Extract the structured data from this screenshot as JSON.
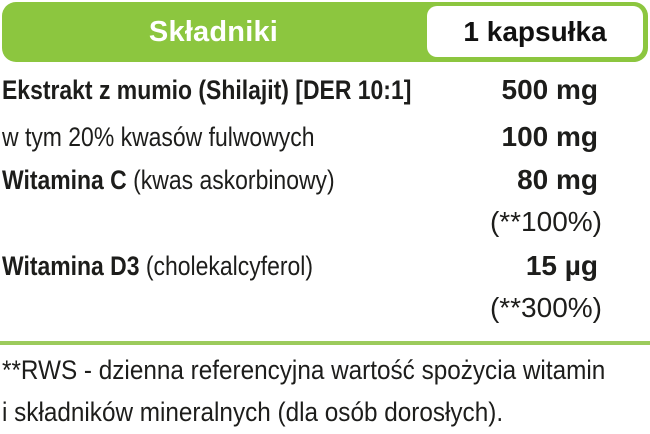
{
  "colors": {
    "brand_green": "#8cc63f",
    "divider_green": "#9ccb5c",
    "text": "#1d1d1b"
  },
  "header": {
    "title": "Składniki",
    "serving": "1 kapsułka"
  },
  "table": {
    "rows": [
      {
        "bold": "Ekstrakt z mumio (Shilajit) [DER 10:1]",
        "regular": "",
        "value": "500 mg",
        "sub": ""
      },
      {
        "bold": "",
        "regular": "w tym 20% kwasów fulwowych",
        "value": "100 mg",
        "sub": ""
      },
      {
        "bold": "Witamina C",
        "regular": " (kwas askorbinowy)",
        "value": "80 mg",
        "sub": "(**100%)"
      },
      {
        "bold": "Witamina D3",
        "regular": " (cholekalcyferol)",
        "value": "15 µg",
        "sub": "(**300%)"
      }
    ]
  },
  "footer": {
    "line1": "**RWS - dzienna referencyjna wartość spożycia witamin",
    "line2": "i składników mineralnych (dla osób dorosłych)."
  }
}
